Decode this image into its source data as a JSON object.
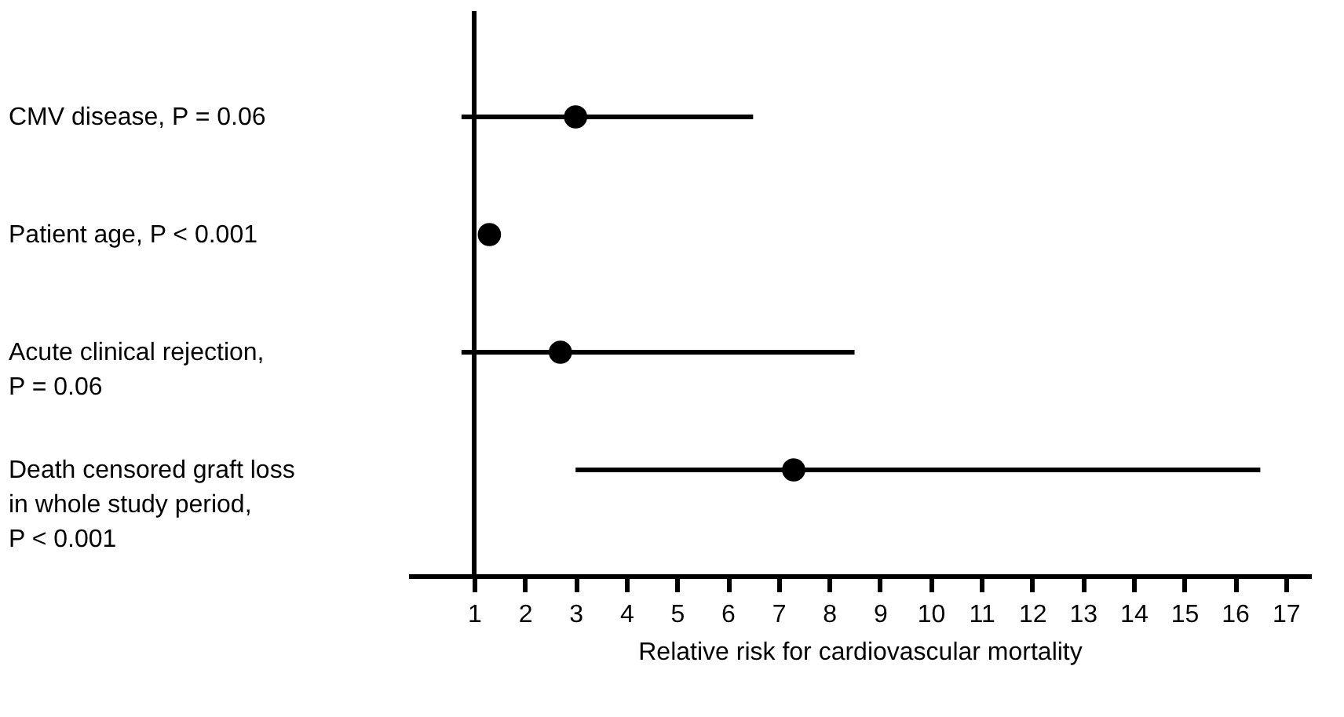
{
  "chart_data": {
    "type": "scatter",
    "orientation": "horizontal",
    "categories": [
      "CMV disease, P = 0.06",
      "Patient age, P < 0.001",
      "Acute clinical rejection,\nP = 0.06",
      "Death censored graft loss\nin whole study period,\nP < 0.001"
    ],
    "values": [
      3.0,
      1.3,
      2.7,
      7.3
    ],
    "errors": [
      [
        0.75,
        6.5
      ],
      null,
      [
        0.75,
        8.5
      ],
      [
        3.0,
        16.5
      ]
    ],
    "color": "#000000",
    "marker": "circle",
    "xlabel": "Relative risk for cardiovascular mortality",
    "xlim": [
      -0.3,
      17.5
    ],
    "xticks": [
      1,
      2,
      3,
      4,
      5,
      6,
      7,
      8,
      9,
      10,
      11,
      12,
      13,
      14,
      15,
      16,
      17
    ],
    "ref_lines": [
      {
        "axis": "x",
        "value": 1,
        "color": "#000000"
      }
    ],
    "grid": false
  }
}
